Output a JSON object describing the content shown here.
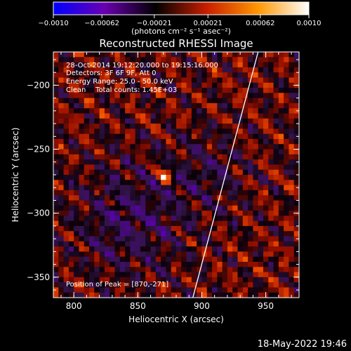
{
  "chart_data": {
    "type": "heatmap",
    "title": "Reconstructed RHESSI Image",
    "xlabel": "Heliocentric X (arcsec)",
    "ylabel": "Heliocentric Y (arcsec)",
    "xlim": [
      784,
      976
    ],
    "ylim": [
      -366,
      -174
    ],
    "x_ticks": [
      800,
      850,
      900,
      950
    ],
    "y_ticks": [
      -200,
      -250,
      -300,
      -350
    ],
    "x_tick_labels": [
      "800",
      "850",
      "900",
      "950"
    ],
    "y_tick_labels": [
      "−200",
      "−250",
      "−300",
      "−350"
    ],
    "colorbar": {
      "label": "(photons cm⁻² s⁻¹ asec⁻²)",
      "range": [
        -0.001,
        0.001
      ],
      "tick_labels": [
        "−0.0010",
        "−0.00062",
        "−0.00021",
        "0.00021",
        "0.00062",
        "0.0010"
      ],
      "colors": [
        "#0000ff",
        "#6a00b0",
        "#000000",
        "#c81e00",
        "#ff9600",
        "#ffffff"
      ]
    },
    "annotations": [
      "28-Oct-2014 19:12:20.000 to 19:15:16.000",
      "Detectors: 3F 6F 9F, Att 0",
      "Energy Range: 25.0 - 50.0 keV",
      "Clean",
      "Total counts: 1.45E+03"
    ],
    "peak_label": "Position of Peak = [870,-271]",
    "peak": [
      870,
      -271
    ],
    "limb_line": [
      [
        893,
        -366
      ],
      [
        944,
        -174
      ]
    ],
    "limb_color": "#ffffff"
  },
  "footer": {
    "timestamp": "18-May-2022 19:46"
  }
}
